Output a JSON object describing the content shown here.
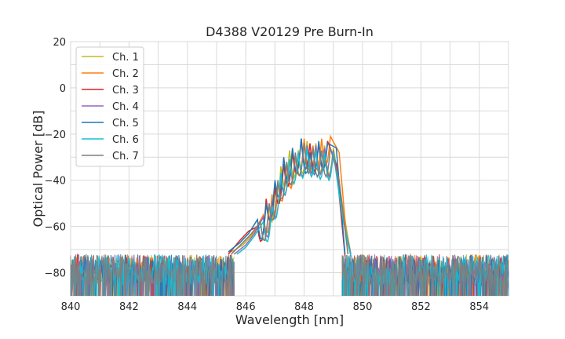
{
  "chart_data": {
    "type": "line",
    "title": "D4388 V20129 Pre Burn-In",
    "xlabel": "Wavelength [nm]",
    "ylabel": "Optical Power [dB]",
    "xlim": [
      840,
      855
    ],
    "ylim": [
      -90,
      20
    ],
    "xticks": [
      840,
      842,
      844,
      846,
      848,
      850,
      852,
      854
    ],
    "yticks": [
      20,
      0,
      -20,
      -40,
      -60,
      -80
    ],
    "grid": true,
    "legend_position": "top-left",
    "noise_floor": [
      -90,
      -72
    ],
    "series": [
      {
        "name": "Ch. 1",
        "color": "#bcbd22",
        "points": [
          [
            845.5,
            -71
          ],
          [
            845.9,
            -68
          ],
          [
            846.2,
            -64
          ],
          [
            846.5,
            -58
          ],
          [
            846.8,
            -50
          ],
          [
            847.0,
            -42
          ],
          [
            847.2,
            -34
          ],
          [
            847.5,
            -27
          ],
          [
            847.8,
            -27
          ],
          [
            848.1,
            -23
          ],
          [
            848.4,
            -24
          ],
          [
            848.7,
            -25
          ],
          [
            849.0,
            -26
          ],
          [
            849.3,
            -50
          ],
          [
            849.6,
            -72
          ]
        ]
      },
      {
        "name": "Ch. 2",
        "color": "#ff7f0e",
        "points": [
          [
            845.5,
            -72
          ],
          [
            845.9,
            -67
          ],
          [
            846.3,
            -62
          ],
          [
            846.6,
            -55
          ],
          [
            846.9,
            -46
          ],
          [
            847.1,
            -41
          ],
          [
            847.4,
            -33
          ],
          [
            847.7,
            -30
          ],
          [
            848.0,
            -22
          ],
          [
            848.3,
            -25
          ],
          [
            848.6,
            -22
          ],
          [
            848.9,
            -21
          ],
          [
            849.2,
            -28
          ],
          [
            849.5,
            -72
          ]
        ]
      },
      {
        "name": "Ch. 3",
        "color": "#d62728",
        "points": [
          [
            845.4,
            -72
          ],
          [
            845.8,
            -66
          ],
          [
            846.1,
            -62
          ],
          [
            846.4,
            -60
          ],
          [
            846.7,
            -48
          ],
          [
            847.0,
            -43
          ],
          [
            847.3,
            -33
          ],
          [
            847.6,
            -28
          ],
          [
            847.9,
            -22
          ],
          [
            848.2,
            -24
          ],
          [
            848.5,
            -24
          ],
          [
            848.8,
            -23
          ],
          [
            849.1,
            -33
          ],
          [
            849.4,
            -73
          ]
        ]
      },
      {
        "name": "Ch. 4",
        "color": "#9467bd",
        "points": [
          [
            845.6,
            -72
          ],
          [
            846.0,
            -68
          ],
          [
            846.3,
            -63
          ],
          [
            846.6,
            -56
          ],
          [
            846.9,
            -49
          ],
          [
            847.2,
            -38
          ],
          [
            847.5,
            -31
          ],
          [
            847.8,
            -28
          ],
          [
            848.1,
            -25
          ],
          [
            848.4,
            -25
          ],
          [
            848.7,
            -26
          ],
          [
            849.0,
            -27
          ],
          [
            849.3,
            -55
          ],
          [
            849.6,
            -72
          ]
        ]
      },
      {
        "name": "Ch. 5",
        "color": "#1f77b4",
        "points": [
          [
            845.4,
            -71
          ],
          [
            845.8,
            -67
          ],
          [
            846.1,
            -63
          ],
          [
            846.4,
            -57
          ],
          [
            846.7,
            -50
          ],
          [
            847.0,
            -40
          ],
          [
            847.3,
            -30
          ],
          [
            847.6,
            -26
          ],
          [
            847.9,
            -22
          ],
          [
            848.2,
            -28
          ],
          [
            848.5,
            -23
          ],
          [
            848.8,
            -24
          ],
          [
            849.1,
            -26
          ],
          [
            849.4,
            -72
          ]
        ]
      },
      {
        "name": "Ch. 6",
        "color": "#17becf",
        "points": [
          [
            845.7,
            -72
          ],
          [
            846.0,
            -69
          ],
          [
            846.3,
            -64
          ],
          [
            846.6,
            -58
          ],
          [
            846.9,
            -51
          ],
          [
            847.2,
            -37
          ],
          [
            847.5,
            -31
          ],
          [
            847.8,
            -28
          ],
          [
            848.1,
            -26
          ],
          [
            848.4,
            -27
          ],
          [
            848.7,
            -28
          ],
          [
            849.0,
            -28
          ],
          [
            849.3,
            -55
          ],
          [
            849.6,
            -73
          ]
        ]
      },
      {
        "name": "Ch. 7",
        "color": "#7f7f7f",
        "points": [
          [
            845.5,
            -72
          ],
          [
            845.9,
            -67
          ],
          [
            846.2,
            -63
          ],
          [
            846.5,
            -58
          ],
          [
            846.8,
            -50
          ],
          [
            847.1,
            -40
          ],
          [
            847.4,
            -32
          ],
          [
            847.7,
            -28
          ],
          [
            848.0,
            -24
          ],
          [
            848.3,
            -26
          ],
          [
            848.6,
            -27
          ],
          [
            848.9,
            -26
          ],
          [
            849.2,
            -40
          ],
          [
            849.5,
            -72
          ]
        ]
      }
    ]
  }
}
